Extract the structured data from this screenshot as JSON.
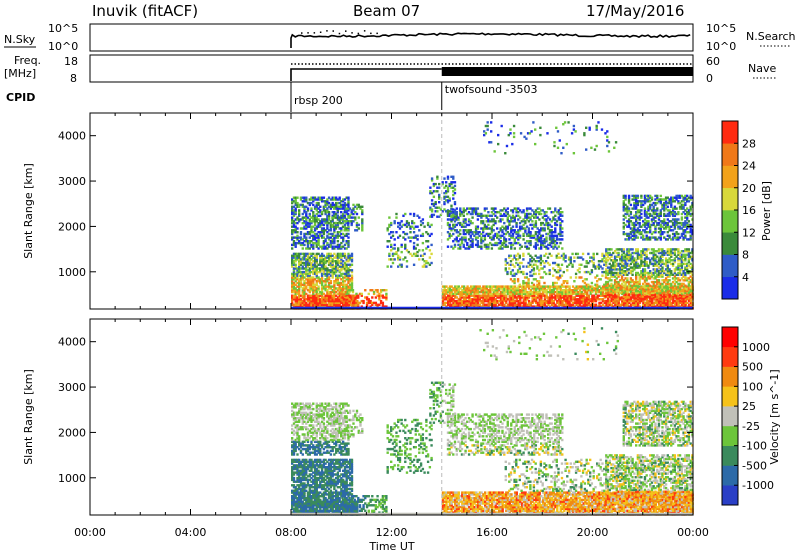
{
  "header": {
    "station": "Inuvik (fitACF)",
    "beam": "Beam 07",
    "date": "17/May/2016"
  },
  "noise_panel": {
    "left_label": "N.Sky",
    "right_label": "N.Search",
    "left_ticks": [
      "10^5",
      "10^0"
    ],
    "right_ticks": [
      "10^5",
      "10^0"
    ]
  },
  "freq_panel": {
    "left_label_1": "Freq.",
    "left_label_2": "[MHz]",
    "right_label": "Nave",
    "left_ticks": [
      "18",
      "8"
    ],
    "right_ticks": [
      "60",
      "0"
    ]
  },
  "cpid": {
    "label": "CPID",
    "modes": [
      {
        "name": "rbsp 200",
        "start_hour": 8.0
      },
      {
        "name": "twofsound -3503",
        "start_hour": 14.0
      }
    ]
  },
  "chart_data": [
    {
      "type": "heatmap",
      "panel": "power",
      "ylabel": "Slant Range [km]",
      "xlabel": "",
      "xlim": [
        0,
        24
      ],
      "ylim": [
        180,
        4500
      ],
      "y_ticks": [
        1000,
        2000,
        3000,
        4000
      ],
      "colorbar": {
        "label": "Power [dB]",
        "ticks": [
          4,
          8,
          12,
          16,
          20,
          24,
          28
        ],
        "colors": [
          "#1a2ce8",
          "#2f5cc7",
          "#3a8a3a",
          "#6cc53a",
          "#d8d83a",
          "#f2a21a",
          "#f07818",
          "#ff2a10"
        ]
      }
    },
    {
      "type": "heatmap",
      "panel": "velocity",
      "ylabel": "Slant Range [km]",
      "xlabel": "Time UT",
      "xlim": [
        0,
        24
      ],
      "ylim": [
        180,
        4500
      ],
      "x_tick_labels": [
        "00:00",
        "04:00",
        "08:00",
        "12:00",
        "16:00",
        "20:00",
        "00:00"
      ],
      "x_tick_hours": [
        0,
        4,
        8,
        12,
        16,
        20,
        24
      ],
      "y_ticks": [
        1000,
        2000,
        3000,
        4000
      ],
      "colorbar": {
        "label": "Velocity [m s^-1]",
        "ticks": [
          "1000",
          "500",
          "100",
          "25",
          "-25",
          "-100",
          "-500",
          "-1000"
        ],
        "colors": [
          "#2a3fc6",
          "#2c6aa8",
          "#3a8a5c",
          "#6cc53a",
          "#c0c0b8",
          "#f5c21a",
          "#f08a10",
          "#ff3a10",
          "#ff0000"
        ]
      }
    }
  ]
}
